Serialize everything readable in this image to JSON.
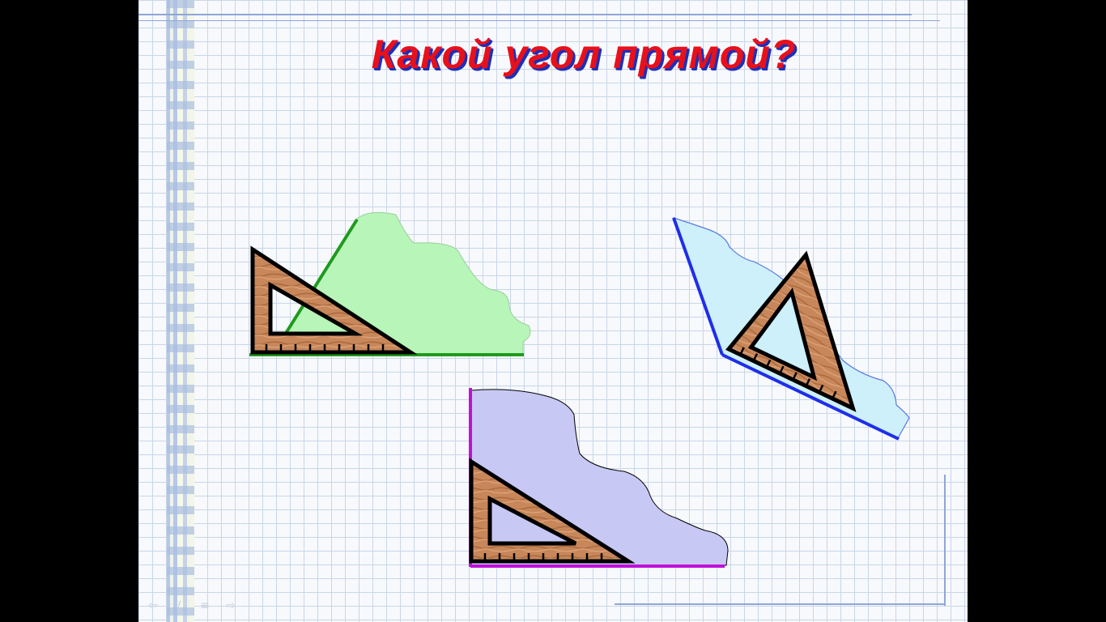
{
  "slide": {
    "title": "Какой угол прямой?"
  },
  "figures": [
    {
      "name": "green-angle",
      "fill": "#b8f5b8",
      "ray_color": "#1e9a1e"
    },
    {
      "name": "blue-angle",
      "fill": "#cdf0fb",
      "ray_color": "#1f2ee8"
    },
    {
      "name": "purple-angle",
      "fill": "#c8c8f5",
      "ray_color": "#c010d8"
    }
  ],
  "colors": {
    "title": "#e8101a",
    "title_shadow": "#1d2fb8",
    "set_square_wood": "#c8875a",
    "set_square_outline": "#000000"
  },
  "nav": {
    "icons": [
      "prev-arrow-icon",
      "pen-icon",
      "menu-icon",
      "next-arrow-icon"
    ]
  }
}
